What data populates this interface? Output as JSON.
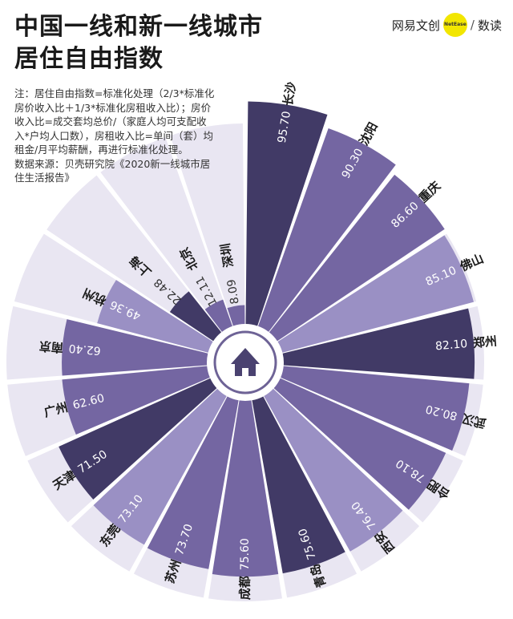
{
  "header": {
    "title_line1": "中国一线和新一线城市",
    "title_line2": "居住自由指数",
    "brand_name": "网易文创",
    "brand_badge": "NetEase",
    "brand_divider": "/",
    "brand_section": "数读"
  },
  "note": {
    "text": "注：居住自由指数=标准化处理（2/3*标准化房价收入比＋1/3*标准化房租收入比）；房价收入比=成交套均总价/（家庭人均可支配收入*户均人口数），房租收入比=单间（套）均租金/月平均薪酬，再进行标准化处理。",
    "source": "数据来源：贝壳研究院《2020新一线城市居住生活报告》"
  },
  "colors": {
    "dark": "#413a66",
    "medium": "#7466a2",
    "light": "#9a90c4",
    "pale": "#e9e6f2",
    "center_ring": "#6e6396",
    "house": "#4a4270"
  },
  "chart_data": {
    "type": "polar-bar",
    "ylim": [
      0,
      100
    ],
    "categories": [
      "长沙",
      "沈阳",
      "重庆",
      "佛山",
      "郑州",
      "武汉",
      "合肥",
      "西安",
      "青岛",
      "成都",
      "苏州",
      "东莞",
      "天津",
      "广州",
      "南京",
      "杭州",
      "上海",
      "北京",
      "深圳"
    ],
    "values": [
      95.7,
      90.3,
      86.6,
      85.1,
      82.1,
      80.2,
      78.1,
      76.4,
      75.6,
      75.6,
      73.7,
      73.1,
      71.5,
      62.6,
      62.4,
      49.36,
      22.48,
      12.11,
      8.09
    ],
    "value_labels": [
      "95.70",
      "90.30",
      "86.60",
      "85.10",
      "82.10",
      "80.20",
      "78.10",
      "76.40",
      "75.60",
      "75.60",
      "73.70",
      "73.10",
      "71.50",
      "62.60",
      "62.40",
      "49.36",
      "22.48",
      "12.11",
      "8.09"
    ],
    "shades": [
      "dark",
      "medium",
      "medium",
      "light",
      "dark",
      "medium",
      "medium",
      "light",
      "dark",
      "medium",
      "medium",
      "light",
      "dark",
      "medium",
      "medium",
      "light",
      "dark",
      "medium",
      "medium"
    ]
  }
}
